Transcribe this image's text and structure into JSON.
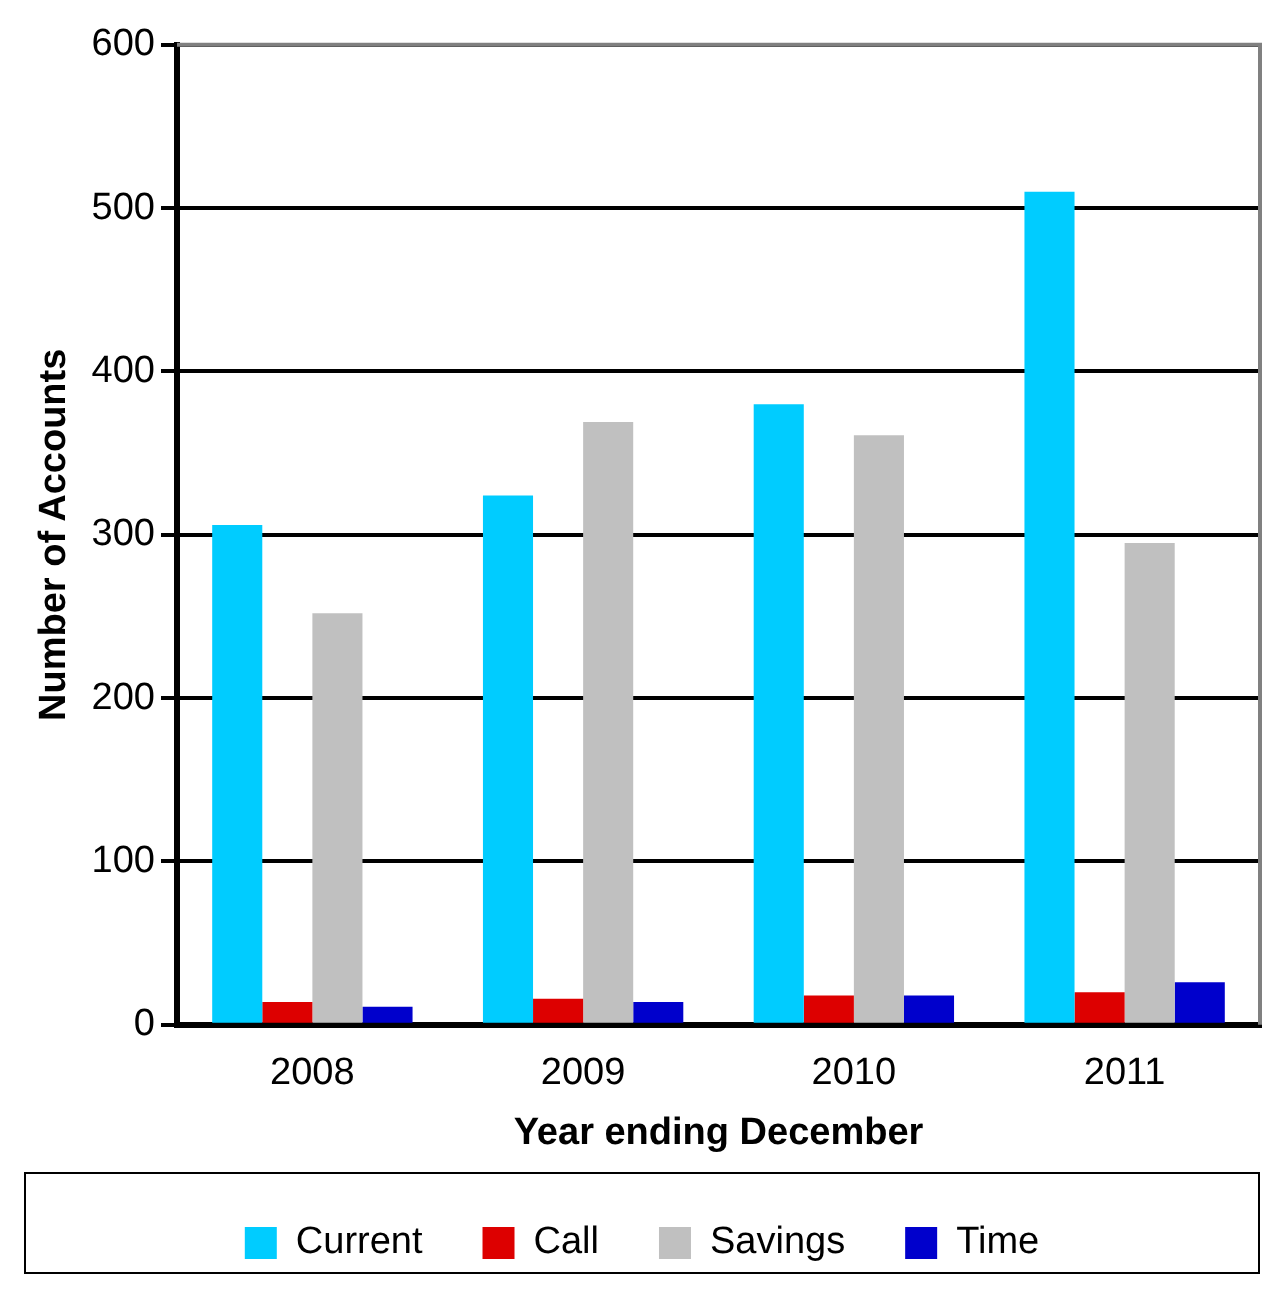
{
  "chart_data": {
    "type": "bar",
    "xlabel": "Year ending December",
    "ylabel": "Number of Accounts",
    "categories": [
      "2008",
      "2009",
      "2010",
      "2011"
    ],
    "series": [
      {
        "name": "Current",
        "color": "#00ccff",
        "values": [
          306,
          324,
          380,
          510
        ]
      },
      {
        "name": "Call",
        "color": "#dd0000",
        "values": [
          14,
          16,
          18,
          20
        ]
      },
      {
        "name": "Savings",
        "color": "#c0c0c0",
        "values": [
          252,
          369,
          361,
          295
        ]
      },
      {
        "name": "Time",
        "color": "#0000cc",
        "values": [
          11,
          14,
          18,
          26
        ]
      }
    ],
    "ylim": [
      0,
      600
    ],
    "yticks": [
      0,
      100,
      200,
      300,
      400,
      500,
      600
    ],
    "grid": "y",
    "legend": "bottom"
  }
}
